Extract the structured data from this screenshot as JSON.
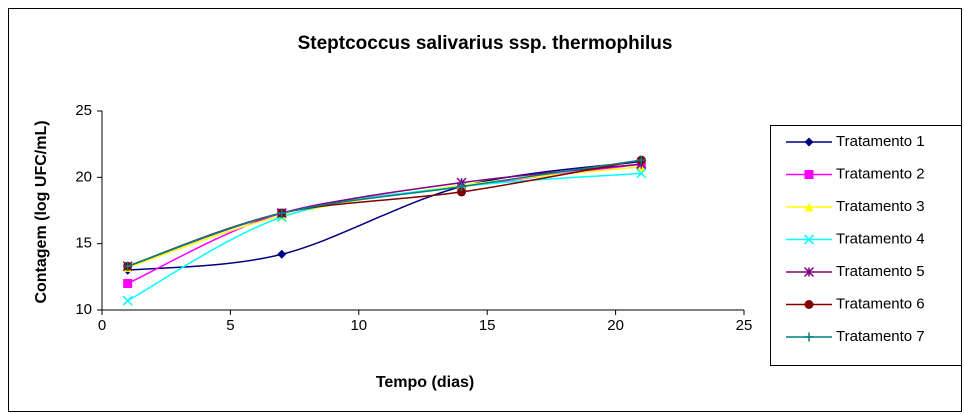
{
  "chart_data": {
    "type": "line",
    "title": "Steptcoccus salivarius ssp. thermophilus",
    "xlabel": "Tempo (dias)",
    "ylabel": "Contagem (log UFC/mL)",
    "x": [
      1,
      7,
      14,
      21
    ],
    "xlim": [
      0,
      25
    ],
    "xticks": [
      0,
      5,
      10,
      15,
      20,
      25
    ],
    "ylim": [
      10,
      25
    ],
    "yticks": [
      10,
      15,
      20,
      25
    ],
    "grid": false,
    "smooth": true,
    "legend": "right",
    "series": [
      {
        "name": "Tratamento 1",
        "color": "#000080",
        "marker": "diamond",
        "values": [
          13.0,
          14.2,
          19.3,
          21.2
        ]
      },
      {
        "name": "Tratamento 2",
        "color": "#ff00ff",
        "marker": "square",
        "values": [
          12.0,
          17.3,
          19.3,
          21.0
        ]
      },
      {
        "name": "Tratamento 3",
        "color": "#ffff00",
        "marker": "triangle",
        "values": [
          13.2,
          17.1,
          19.4,
          20.8
        ]
      },
      {
        "name": "Tratamento 4",
        "color": "#00ffff",
        "marker": "x",
        "values": [
          10.7,
          17.0,
          19.3,
          20.3
        ]
      },
      {
        "name": "Tratamento 5",
        "color": "#800080",
        "marker": "asterisk",
        "values": [
          13.3,
          17.3,
          19.6,
          21.0
        ]
      },
      {
        "name": "Tratamento 6",
        "color": "#800000",
        "marker": "circle",
        "values": [
          13.3,
          17.3,
          18.9,
          21.3
        ]
      },
      {
        "name": "Tratamento 7",
        "color": "#008080",
        "marker": "plus",
        "values": [
          13.3,
          17.3,
          19.3,
          21.3
        ]
      }
    ]
  }
}
